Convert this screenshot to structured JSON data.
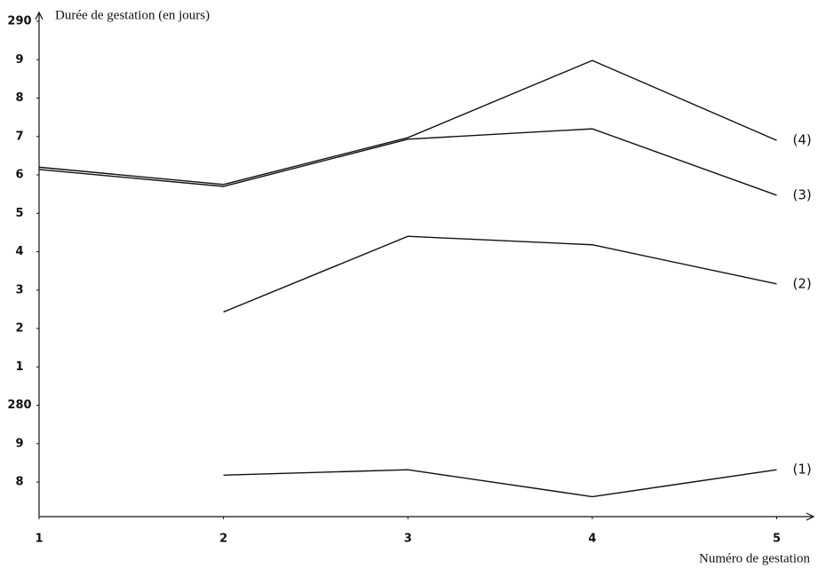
{
  "chart_data": {
    "type": "line",
    "y_label": "Durée de gestation (en jours)",
    "x_label": "Numéro de gestation",
    "x": [
      1,
      2,
      3,
      4,
      5
    ],
    "xlim": [
      1,
      5.2
    ],
    "xticks": [
      1,
      2,
      3,
      4,
      5
    ],
    "ylim": [
      277.1,
      290
    ],
    "yticks": [
      290,
      {
        "value": 289,
        "label": "9"
      },
      {
        "value": 288,
        "label": "8"
      },
      {
        "value": 287,
        "label": "7"
      },
      {
        "value": 286,
        "label": "6"
      },
      {
        "value": 285,
        "label": "5"
      },
      {
        "value": 284,
        "label": "4"
      },
      {
        "value": 283,
        "label": "3"
      },
      {
        "value": 282,
        "label": "2"
      },
      {
        "value": 281,
        "label": "1"
      },
      280,
      {
        "value": 279,
        "label": "9"
      },
      {
        "value": 278,
        "label": "8"
      }
    ],
    "series": [
      {
        "name": "(4)",
        "color": "#111111",
        "values": [
          286.2,
          285.75,
          286.97,
          288.98,
          286.9
        ]
      },
      {
        "name": "(3)",
        "color": "#111111",
        "values": [
          286.14,
          285.7,
          286.93,
          287.2,
          285.47
        ]
      },
      {
        "name": "(2)",
        "color": "#111111",
        "values": [
          null,
          282.43,
          284.4,
          284.18,
          283.16
        ]
      },
      {
        "name": "(1)",
        "color": "#111111",
        "values": [
          null,
          278.18,
          278.32,
          277.62,
          278.32
        ]
      }
    ]
  }
}
